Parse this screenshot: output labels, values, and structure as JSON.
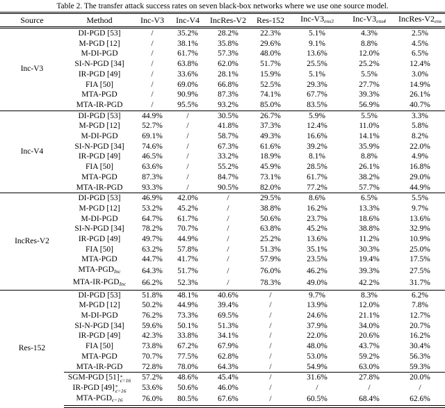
{
  "title": "Table 2. The transfer attack success rates on seven black-box networks where we use one source model.",
  "table": {
    "headers": [
      {
        "label": "Source"
      },
      {
        "label": "Method"
      },
      {
        "label": "Inc-V3"
      },
      {
        "label": "Inc-V4"
      },
      {
        "label": "IncRes-V2"
      },
      {
        "label": "Res-152"
      },
      {
        "label": "Inc-V3",
        "sub": "ens3"
      },
      {
        "label": "Inc-V3",
        "sub": "ens4"
      },
      {
        "label": "IncRes-V2",
        "sub": "ens"
      }
    ],
    "groups": [
      {
        "source": "Inc-V3",
        "rows": [
          {
            "method": {
              "text": "DI-PGD [53]"
            },
            "values": [
              "/",
              "35.2%",
              "28.2%",
              "22.3%",
              "5.1%",
              "4.3%",
              "2.5%"
            ],
            "bold_values": []
          },
          {
            "method": {
              "text": "M-PGD [12]"
            },
            "values": [
              "/",
              "38.1%",
              "35.8%",
              "29.6%",
              "9.1%",
              "8.8%",
              "4.5%"
            ],
            "bold_values": []
          },
          {
            "method": {
              "text": "M-DI-PGD"
            },
            "values": [
              "/",
              "61.7%",
              "57.3%",
              "48.0%",
              "13.6%",
              "12.0%",
              "6.5%"
            ],
            "bold_values": []
          },
          {
            "method": {
              "text": "SI-N-PGD [34]"
            },
            "values": [
              "/",
              "63.8%",
              "62.0%",
              "51.7%",
              "25.5%",
              "25.2%",
              "12.4%"
            ],
            "bold_values": []
          },
          {
            "method": {
              "text": "IR-PGD [49]"
            },
            "values": [
              "/",
              "33.6%",
              "28.1%",
              "15.9%",
              "5.1%",
              "5.5%",
              "3.0%"
            ],
            "bold_values": []
          },
          {
            "method": {
              "text": "FIA [50]"
            },
            "values": [
              "/",
              "69.0%",
              "66.8%",
              "52.5%",
              "29.3%",
              "27.7%",
              "14.9%"
            ],
            "bold_values": []
          },
          {
            "method": {
              "text": "MTA-PGD",
              "bold": true
            },
            "values": [
              "/",
              "90.9%",
              "87.3%",
              "74.1%",
              "67.7%",
              "39.3%",
              "26.1%"
            ],
            "bold_values": []
          },
          {
            "method": {
              "text": "MTA-IR-PGD",
              "bold": true
            },
            "values": [
              "/",
              "95.5%",
              "93.2%",
              "85.0%",
              "83.5%",
              "56.9%",
              "40.7%"
            ],
            "bold_values": [
              1,
              2,
              3,
              4,
              5,
              6
            ]
          }
        ]
      },
      {
        "source": "Inc-V4",
        "rows": [
          {
            "method": {
              "text": "DI-PGD [53]"
            },
            "values": [
              "44.9%",
              "/",
              "30.5%",
              "26.7%",
              "5.9%",
              "5.5%",
              "3.3%"
            ],
            "bold_values": []
          },
          {
            "method": {
              "text": "M-PGD [12]"
            },
            "values": [
              "52.7%",
              "/",
              "41.8%",
              "37.3%",
              "12.4%",
              "11.0%",
              "5.8%"
            ],
            "bold_values": []
          },
          {
            "method": {
              "text": "M-DI-PGD"
            },
            "values": [
              "69.1%",
              "/",
              "58.7%",
              "49.3%",
              "16.6%",
              "14.1%",
              "8.2%"
            ],
            "bold_values": []
          },
          {
            "method": {
              "text": "SI-N-PGD [34]"
            },
            "values": [
              "74.6%",
              "/",
              "67.3%",
              "61.6%",
              "39.2%",
              "35.9%",
              "22.0%"
            ],
            "bold_values": []
          },
          {
            "method": {
              "text": "IR-PGD [49]"
            },
            "values": [
              "46.5%",
              "/",
              "33.2%",
              "18.9%",
              "8.1%",
              "8.8%",
              "4.9%"
            ],
            "bold_values": []
          },
          {
            "method": {
              "text": "FIA [50]"
            },
            "values": [
              "63.6%",
              "/",
              "55.2%",
              "45.9%",
              "28.5%",
              "26.1%",
              "16.8%"
            ],
            "bold_values": []
          },
          {
            "method": {
              "text": "MTA-PGD",
              "bold": true
            },
            "values": [
              "87.3%",
              "/",
              "84.7%",
              "73.1%",
              "61.7%",
              "38.2%",
              "29.0%"
            ],
            "bold_values": []
          },
          {
            "method": {
              "text": "MTA-IR-PGD",
              "bold": true
            },
            "values": [
              "93.3%",
              "/",
              "90.5%",
              "82.0%",
              "77.2%",
              "57.7%",
              "44.9%"
            ],
            "bold_values": [
              0,
              2,
              3,
              4,
              5,
              6
            ]
          }
        ]
      },
      {
        "source": "IncRes-V2",
        "rows": [
          {
            "method": {
              "text": "DI-PGD [53]"
            },
            "values": [
              "46.9%",
              "42.0%",
              "/",
              "29.5%",
              "8.6%",
              "6.5%",
              "5.5%"
            ],
            "bold_values": []
          },
          {
            "method": {
              "text": "M-PGD [12]"
            },
            "values": [
              "53.2%",
              "45.2%",
              "/",
              "38.8%",
              "16.2%",
              "13.3%",
              "9.7%"
            ],
            "bold_values": []
          },
          {
            "method": {
              "text": "M-DI-PGD"
            },
            "values": [
              "64.7%",
              "61.7%",
              "/",
              "50.6%",
              "23.7%",
              "18.6%",
              "13.6%"
            ],
            "bold_values": []
          },
          {
            "method": {
              "text": "SI-N-PGD [34]"
            },
            "values": [
              "78.2%",
              "70.7%",
              "/",
              "63.8%",
              "45.2%",
              "38.8%",
              "32.9%"
            ],
            "bold_values": [
              0,
              1,
              6
            ]
          },
          {
            "method": {
              "text": "IR-PGD [49]"
            },
            "values": [
              "49.7%",
              "44.9%",
              "/",
              "25.2%",
              "13.6%",
              "11.2%",
              "10.9%"
            ],
            "bold_values": []
          },
          {
            "method": {
              "text": "FIA [50]"
            },
            "values": [
              "63.2%",
              "57.8%",
              "/",
              "51.3%",
              "35.1%",
              "30.3%",
              "25.0%"
            ],
            "bold_values": []
          },
          {
            "method": {
              "text": "MTA-PGD",
              "bold": true
            },
            "values": [
              "44.7%",
              "41.7%",
              "/",
              "57.9%",
              "23.5%",
              "19.4%",
              "17.5%"
            ],
            "bold_values": []
          },
          {
            "method": {
              "text": "MTA-PGD",
              "bold": true,
              "sub": "Inc"
            },
            "values": [
              "64.3%",
              "51.7%",
              "/",
              "76.0%",
              "46.2%",
              "39.3%",
              "27.5%"
            ],
            "bold_values": []
          },
          {
            "method": {
              "text": "MTA-IR-PGD",
              "bold": true,
              "sub": "Inc"
            },
            "values": [
              "66.2%",
              "52.3%",
              "/",
              "78.3%",
              "49.0%",
              "42.2%",
              "31.7%"
            ],
            "bold_values": [
              3,
              4,
              5
            ]
          }
        ]
      },
      {
        "source": "Res-152",
        "rows": [
          {
            "method": {
              "text": "DI-PGD [53]"
            },
            "values": [
              "51.8%",
              "48.1%",
              "40.6%",
              "/",
              "9.7%",
              "8.3%",
              "6.2%"
            ],
            "bold_values": []
          },
          {
            "method": {
              "text": "M-PGD [12]"
            },
            "values": [
              "50.2%",
              "44.9%",
              "39.4%",
              "/",
              "13.9%",
              "12.0%",
              "7.8%"
            ],
            "bold_values": []
          },
          {
            "method": {
              "text": "M-DI-PGD"
            },
            "values": [
              "76.2%",
              "73.3%",
              "69.5%",
              "/",
              "24.6%",
              "21.1%",
              "12.7%"
            ],
            "bold_values": [
              0,
              2
            ]
          },
          {
            "method": {
              "text": "SI-N-PGD [34]"
            },
            "values": [
              "59.6%",
              "50.1%",
              "51.3%",
              "/",
              "37.9%",
              "34.0%",
              "20.7%"
            ],
            "bold_values": []
          },
          {
            "method": {
              "text": "IR-PGD [49]"
            },
            "values": [
              "42.3%",
              "33.8%",
              "34.1%",
              "/",
              "22.0%",
              "20.6%",
              "16.2%"
            ],
            "bold_values": []
          },
          {
            "method": {
              "text": "FIA [50]"
            },
            "values": [
              "73.8%",
              "67.2%",
              "67.9%",
              "/",
              "48.0%",
              "43.7%",
              "30.4%"
            ],
            "bold_values": []
          },
          {
            "method": {
              "text": "MTA-PGD",
              "bold": true
            },
            "values": [
              "70.7%",
              "77.5%",
              "62.8%",
              "/",
              "53.0%",
              "59.2%",
              "56.3%"
            ],
            "bold_values": []
          },
          {
            "method": {
              "text": "MTA-IR-PGD",
              "bold": true
            },
            "values": [
              "72.8%",
              "78.0%",
              "64.3%",
              "/",
              "54.9%",
              "63.0%",
              "59.3%"
            ],
            "bold_values": [
              1,
              4,
              5,
              6
            ]
          },
          {
            "method": {
              "text": "SGM-PGD [51]",
              "sup": "*",
              "sub": "ϵ=16"
            },
            "cline": true,
            "values": [
              "57.2%",
              "48.6%",
              "45.4%",
              "/",
              "31.6%",
              "27.8%",
              "20.0%"
            ],
            "bold_values": []
          },
          {
            "method": {
              "text": "IR-PGD [49]",
              "sup": "*",
              "sub": "ϵ=16"
            },
            "values": [
              "53.6%",
              "50.6%",
              "46.0%",
              "/",
              "/",
              "/",
              "/"
            ],
            "bold_values": []
          },
          {
            "method": {
              "text": "MTA-PGD",
              "bold": true,
              "sub": "ϵ=16"
            },
            "values": [
              "76.0%",
              "80.5%",
              "67.6%",
              "/",
              "60.5%",
              "68.4%",
              "62.6%"
            ],
            "bold_values": [
              0,
              1,
              2,
              4,
              5,
              6
            ]
          }
        ]
      }
    ]
  }
}
